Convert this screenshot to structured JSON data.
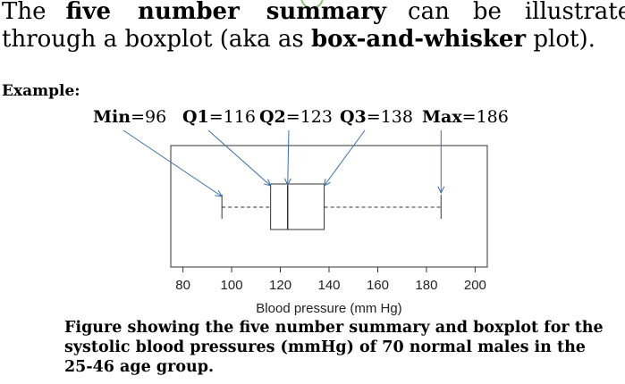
{
  "intro": {
    "w_the": "The",
    "w_five": "five",
    "w_number": "number",
    "w_summary": "summary",
    "w_can": "can",
    "w_be": "be",
    "w_illustrated": "illustrated",
    "line2_prefix": "through a boxplot (aka as ",
    "line2_bold": "box-and-whisker",
    "line2_suffix": " plot)."
  },
  "example_label": "Example:",
  "five_number_summary": [
    {
      "name": "Min",
      "sep": "=",
      "value": "96"
    },
    {
      "name": "Q1",
      "sep": "=",
      "value": "116"
    },
    {
      "name": "Q2",
      "sep": "=",
      "value": "123"
    },
    {
      "name": "Q3",
      "sep": "=",
      "value": "138"
    },
    {
      "name": "Max",
      "sep": "=",
      "value": "186"
    }
  ],
  "chart_data": {
    "type": "boxplot",
    "orientation": "horizontal",
    "xlabel": "Blood pressure (mm Hg)",
    "xlim": [
      75,
      205
    ],
    "ticks": [
      80,
      100,
      120,
      140,
      160,
      180,
      200
    ],
    "tick_labels": [
      "80",
      "100",
      "120",
      "140",
      "160",
      "180",
      "200"
    ],
    "min": 96,
    "q1": 116,
    "median": 123,
    "q3": 138,
    "max": 186,
    "whisker_style": "dashed"
  },
  "caption": "Figure showing the five number summary and boxplot for the systolic blood pressures (mmHg) of 70 normal males in the 25-46 age group.",
  "colors": {
    "text": "#000000",
    "axis": "#333333",
    "box": "#333333",
    "decor_circle": "#8fc27a"
  }
}
